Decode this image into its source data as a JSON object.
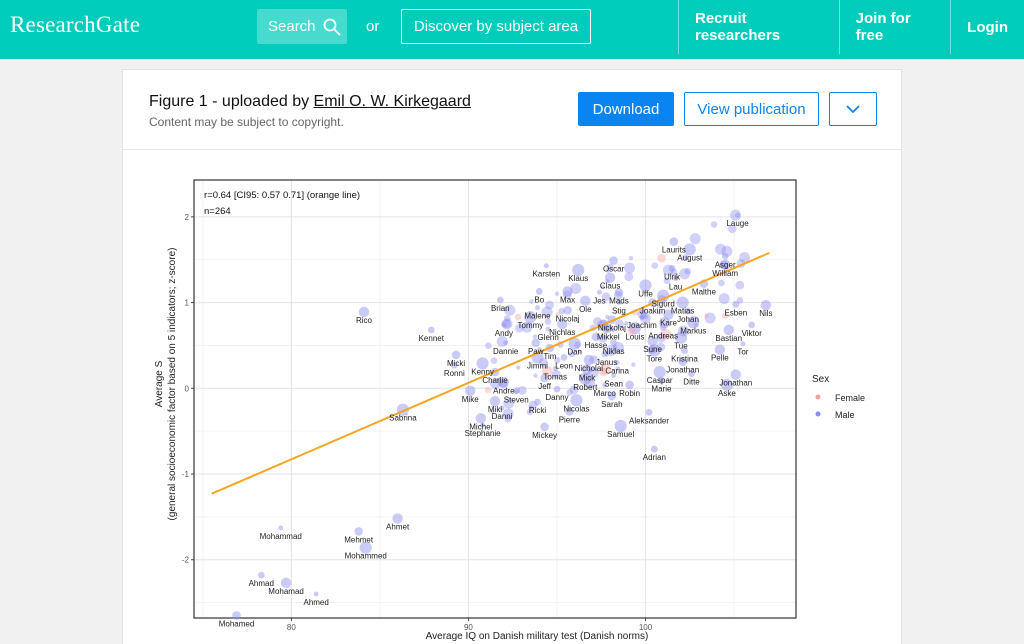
{
  "topbar": {
    "logo": "ResearchGate",
    "search_label": "Search",
    "or_label": "or",
    "discover_label": "Discover by subject area",
    "nav": [
      "Recruit researchers",
      "Join for free",
      "Login"
    ]
  },
  "figure": {
    "title_prefix": "Figure 1 - uploaded by ",
    "author": "Emil O. W. Kirkegaard",
    "copyright": "Content may be subject to copyright.",
    "download_label": "Download",
    "view_label": "View publication"
  },
  "chart_data": {
    "type": "scatter",
    "title": "",
    "xlabel": "Average IQ on Danish military test (Danish norms)",
    "ylabel": "Average S",
    "ylabel2": "(general socioeconomic factor based on 5 indicators; z-score)",
    "xlim": [
      74.5,
      108.5
    ],
    "ylim": [
      -2.68,
      2.43
    ],
    "xticks": [
      80,
      90,
      100
    ],
    "yticks": [
      -2,
      -1,
      0,
      1,
      2
    ],
    "grid": true,
    "annotation": [
      "r=0.64 [CI95: 0.57 0.71] (orange line)",
      "n=264"
    ],
    "legend": {
      "title": "Sex",
      "placement": "right",
      "entries": [
        {
          "label": "Female",
          "color": "#f4a0a0"
        },
        {
          "label": "Male",
          "color": "#8b8bf0"
        }
      ]
    },
    "regression_line": {
      "color": "#f5a623",
      "x": [
        75.5,
        107
      ],
      "y": [
        -1.23,
        1.58
      ]
    },
    "points": [
      {
        "label": "Lauge",
        "x": 105.2,
        "y": 2.02
      },
      {
        "label": "Laurits",
        "x": 101.6,
        "y": 1.71
      },
      {
        "label": "August",
        "x": 102.5,
        "y": 1.62
      },
      {
        "label": "Asger",
        "x": 104.5,
        "y": 1.54
      },
      {
        "label": "William",
        "x": 104.5,
        "y": 1.44
      },
      {
        "label": "Karsten",
        "x": 94.4,
        "y": 1.43
      },
      {
        "label": "Oscar",
        "x": 98.2,
        "y": 1.49
      },
      {
        "label": "Klaus",
        "x": 96.2,
        "y": 1.38
      },
      {
        "label": "Ulrik",
        "x": 101.5,
        "y": 1.4
      },
      {
        "label": "Claus",
        "x": 98.0,
        "y": 1.29
      },
      {
        "label": "Lau",
        "x": 101.7,
        "y": 1.28
      },
      {
        "label": "Malthe",
        "x": 103.3,
        "y": 1.22
      },
      {
        "label": "Uffe",
        "x": 100.0,
        "y": 1.2
      },
      {
        "label": "Bo",
        "x": 94.0,
        "y": 1.13
      },
      {
        "label": "Max",
        "x": 95.6,
        "y": 1.13
      },
      {
        "label": "Jes",
        "x": 97.4,
        "y": 1.12
      },
      {
        "label": "Mads",
        "x": 98.5,
        "y": 1.12
      },
      {
        "label": "Sigurd",
        "x": 101.0,
        "y": 1.08
      },
      {
        "label": "Brian",
        "x": 91.8,
        "y": 1.03
      },
      {
        "label": "Ole",
        "x": 96.6,
        "y": 1.02
      },
      {
        "label": "Stig",
        "x": 98.5,
        "y": 1.0
      },
      {
        "label": "Joakim",
        "x": 100.4,
        "y": 1.0
      },
      {
        "label": "Matias",
        "x": 102.1,
        "y": 1.0
      },
      {
        "label": "Esben",
        "x": 105.1,
        "y": 0.98
      },
      {
        "label": "Nils",
        "x": 106.8,
        "y": 0.97
      },
      {
        "label": "Malene",
        "x": 93.9,
        "y": 0.94
      },
      {
        "label": "Nicolaj",
        "x": 95.6,
        "y": 0.91
      },
      {
        "label": "Tommy",
        "x": 93.5,
        "y": 0.83
      },
      {
        "label": "Johan",
        "x": 102.4,
        "y": 0.9
      },
      {
        "label": "Kare",
        "x": 101.3,
        "y": 0.86
      },
      {
        "label": "Joachim",
        "x": 99.8,
        "y": 0.83
      },
      {
        "label": "Nickolaj",
        "x": 98.1,
        "y": 0.8
      },
      {
        "label": "Markus",
        "x": 102.7,
        "y": 0.77
      },
      {
        "label": "Viktor",
        "x": 106.0,
        "y": 0.74
      },
      {
        "label": "Nichlas",
        "x": 95.3,
        "y": 0.75
      },
      {
        "label": "Andy",
        "x": 92.0,
        "y": 0.74
      },
      {
        "label": "Mikkel",
        "x": 97.9,
        "y": 0.7
      },
      {
        "label": "Louis",
        "x": 99.4,
        "y": 0.7
      },
      {
        "label": "Andreas",
        "x": 101.0,
        "y": 0.71
      },
      {
        "label": "Bastian",
        "x": 104.7,
        "y": 0.68
      },
      {
        "label": "Glenn",
        "x": 94.5,
        "y": 0.69
      },
      {
        "label": "Hasse",
        "x": 97.2,
        "y": 0.6
      },
      {
        "label": "Tue",
        "x": 102.0,
        "y": 0.59
      },
      {
        "label": "Kennet",
        "x": 87.9,
        "y": 0.68
      },
      {
        "label": "Rico",
        "x": 84.1,
        "y": 0.89
      },
      {
        "label": "Dannie",
        "x": 92.1,
        "y": 0.53
      },
      {
        "label": "Paw",
        "x": 93.8,
        "y": 0.53
      },
      {
        "label": "Dan",
        "x": 96.0,
        "y": 0.52
      },
      {
        "label": "Niklas",
        "x": 98.2,
        "y": 0.53
      },
      {
        "label": "Sune",
        "x": 100.4,
        "y": 0.55
      },
      {
        "label": "Tor",
        "x": 105.5,
        "y": 0.52
      },
      {
        "label": "Tim",
        "x": 94.6,
        "y": 0.47
      },
      {
        "label": "Tore",
        "x": 100.5,
        "y": 0.44
      },
      {
        "label": "Kristina",
        "x": 102.2,
        "y": 0.44
      },
      {
        "label": "Pelle",
        "x": 104.2,
        "y": 0.45
      },
      {
        "label": "Janus",
        "x": 97.8,
        "y": 0.4
      },
      {
        "label": "Micki",
        "x": 89.3,
        "y": 0.39
      },
      {
        "label": "Jimmi",
        "x": 93.9,
        "y": 0.36
      },
      {
        "label": "Leon",
        "x": 95.4,
        "y": 0.36
      },
      {
        "label": "Nicholai",
        "x": 96.8,
        "y": 0.33
      },
      {
        "label": "Carina",
        "x": 98.4,
        "y": 0.3
      },
      {
        "label": "Jonathan",
        "x": 102.1,
        "y": 0.31
      },
      {
        "label": "Kenny",
        "x": 90.8,
        "y": 0.29
      },
      {
        "label": "Ronni",
        "x": 89.2,
        "y": 0.27
      },
      {
        "label": "Mick",
        "x": 96.7,
        "y": 0.22
      },
      {
        "label": "Tomas",
        "x": 94.9,
        "y": 0.23
      },
      {
        "label": "Charlie",
        "x": 91.5,
        "y": 0.19
      },
      {
        "label": "Caspar",
        "x": 100.8,
        "y": 0.19
      },
      {
        "label": "Ditte",
        "x": 102.6,
        "y": 0.17
      },
      {
        "label": "Jonathan",
        "x": 105.1,
        "y": 0.16
      },
      {
        "label": "Sean",
        "x": 98.2,
        "y": 0.15
      },
      {
        "label": "Jeff",
        "x": 94.3,
        "y": 0.12
      },
      {
        "label": "Robert",
        "x": 96.6,
        "y": 0.11
      },
      {
        "label": "Marie",
        "x": 100.9,
        "y": 0.09
      },
      {
        "label": "Andre",
        "x": 92.0,
        "y": 0.07
      },
      {
        "label": "Marco",
        "x": 97.7,
        "y": 0.04
      },
      {
        "label": "Robin",
        "x": 99.1,
        "y": 0.04
      },
      {
        "label": "Aske",
        "x": 104.6,
        "y": 0.04
      },
      {
        "label": "Danny",
        "x": 95.0,
        "y": -0.01
      },
      {
        "label": "Mike",
        "x": 90.1,
        "y": -0.03
      },
      {
        "label": "Steven",
        "x": 92.7,
        "y": -0.04
      },
      {
        "label": "Sarah",
        "x": 98.1,
        "y": -0.09
      },
      {
        "label": "Nicolas",
        "x": 96.1,
        "y": -0.14
      },
      {
        "label": "Ricki",
        "x": 93.9,
        "y": -0.16
      },
      {
        "label": "Miki",
        "x": 91.5,
        "y": -0.15
      },
      {
        "label": "Danni",
        "x": 91.9,
        "y": -0.23
      },
      {
        "label": "Pierre",
        "x": 95.7,
        "y": -0.27
      },
      {
        "label": "Sabrina",
        "x": 86.3,
        "y": -0.25
      },
      {
        "label": "Aleksander",
        "x": 100.2,
        "y": -0.28
      },
      {
        "label": "Michel",
        "x": 90.7,
        "y": -0.35
      },
      {
        "label": "Stephanie",
        "x": 90.8,
        "y": -0.43
      },
      {
        "label": "Mickey",
        "x": 94.3,
        "y": -0.45
      },
      {
        "label": "Samuel",
        "x": 98.6,
        "y": -0.44
      },
      {
        "label": "Adrian",
        "x": 100.5,
        "y": -0.71
      },
      {
        "label": "Ahmet",
        "x": 86.0,
        "y": -1.52
      },
      {
        "label": "Mohammad",
        "x": 79.4,
        "y": -1.63
      },
      {
        "label": "Mehmet",
        "x": 83.8,
        "y": -1.67
      },
      {
        "label": "Mohammed",
        "x": 84.2,
        "y": -1.86
      },
      {
        "label": "Ahmad",
        "x": 78.3,
        "y": -2.18
      },
      {
        "label": "Mohamad",
        "x": 79.7,
        "y": -2.27
      },
      {
        "label": "Ahmed",
        "x": 81.4,
        "y": -2.4
      },
      {
        "label": "Mohamed",
        "x": 76.9,
        "y": -2.65
      }
    ]
  }
}
